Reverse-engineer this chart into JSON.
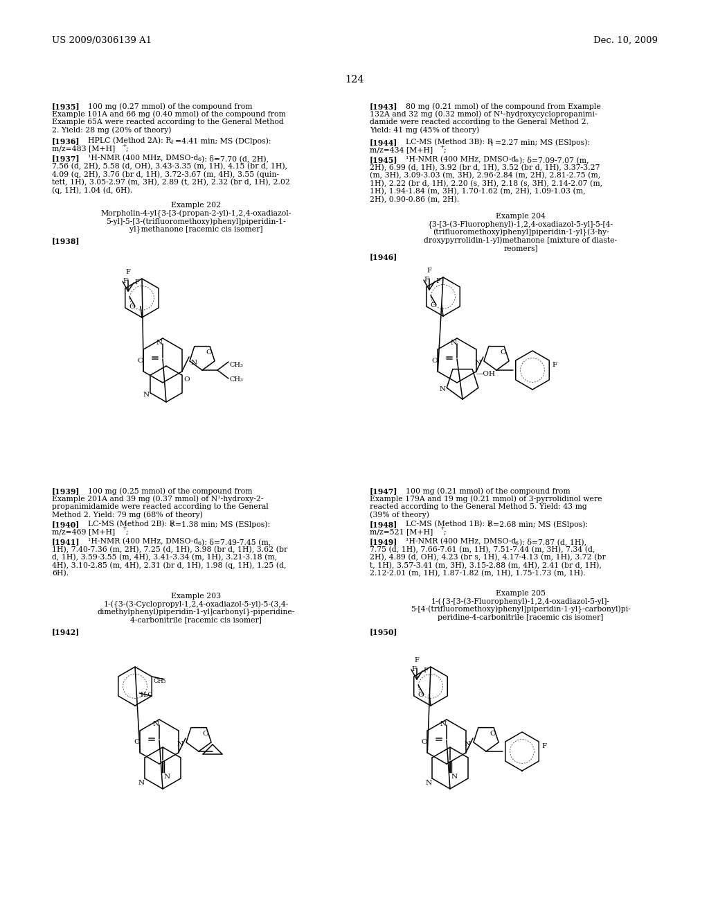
{
  "background": "#ffffff",
  "header_left": "US 2009/0306139 A1",
  "header_right": "Dec. 10, 2009",
  "page_num": "124"
}
